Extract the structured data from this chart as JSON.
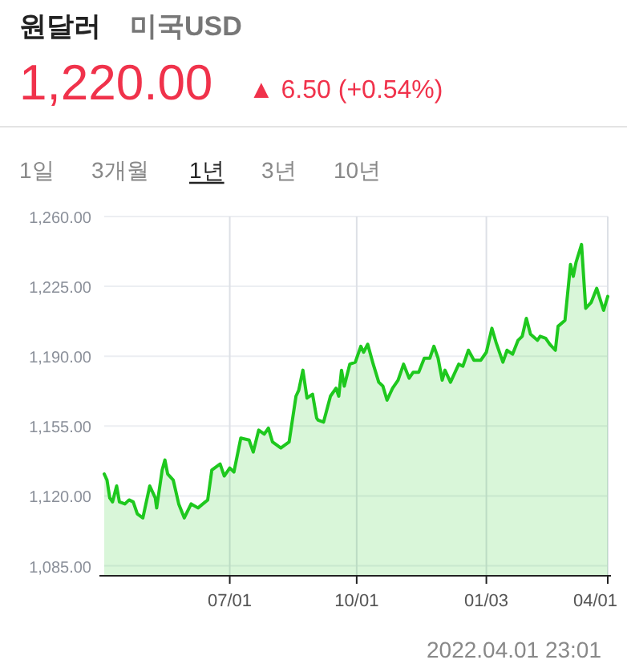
{
  "chart_data": {
    "type": "area",
    "title": "원달러",
    "subtitle": "미국USD",
    "annotations": [
      "1,220.00",
      "▲ 6.50 (+0.54%)",
      "1일",
      "3개월",
      "1년",
      "3년",
      "10년",
      "2022.04.01 23:01"
    ],
    "x": [
      "2021-04-01",
      "2021-04-03",
      "2021-04-05",
      "2021-04-07",
      "2021-04-10",
      "2021-04-12",
      "2021-04-16",
      "2021-04-19",
      "2021-04-22",
      "2021-04-25",
      "2021-04-29",
      "2021-05-04",
      "2021-05-08",
      "2021-05-09",
      "2021-05-13",
      "2021-05-15",
      "2021-05-17",
      "2021-05-21",
      "2021-05-25",
      "2021-05-29",
      "2021-06-03",
      "2021-06-08",
      "2021-06-15",
      "2021-06-18",
      "2021-06-24",
      "2021-06-27",
      "2021-07-01",
      "2021-07-04",
      "2021-07-09",
      "2021-07-15",
      "2021-07-18",
      "2021-07-22",
      "2021-07-26",
      "2021-07-29",
      "2021-08-01",
      "2021-08-07",
      "2021-08-13",
      "2021-08-18",
      "2021-08-20",
      "2021-08-23",
      "2021-08-26",
      "2021-08-30",
      "2021-09-02",
      "2021-09-03",
      "2021-09-07",
      "2021-09-12",
      "2021-09-16",
      "2021-09-18",
      "2021-09-20",
      "2021-09-22",
      "2021-09-26",
      "2021-09-30",
      "2021-10-04",
      "2021-10-06",
      "2021-10-09",
      "2021-10-13",
      "2021-10-17",
      "2021-10-20",
      "2021-10-23",
      "2021-10-27",
      "2021-10-31",
      "2021-11-04",
      "2021-11-08",
      "2021-11-11",
      "2021-11-15",
      "2021-11-19",
      "2021-11-23",
      "2021-11-26",
      "2021-11-29",
      "2021-12-02",
      "2021-12-04",
      "2021-12-08",
      "2021-12-14",
      "2021-12-17",
      "2021-12-21",
      "2021-12-25",
      "2021-12-30",
      "2022-01-03",
      "2022-01-07",
      "2022-01-10",
      "2022-01-15",
      "2022-01-18",
      "2022-01-22",
      "2022-01-26",
      "2022-01-29",
      "2022-02-01",
      "2022-02-04",
      "2022-02-09",
      "2022-02-11",
      "2022-02-15",
      "2022-02-18",
      "2022-02-22",
      "2022-02-24",
      "2022-03-01",
      "2022-03-05",
      "2022-03-07",
      "2022-03-09",
      "2022-03-13",
      "2022-03-16",
      "2022-03-20",
      "2022-03-24",
      "2022-03-29",
      "2022-04-01"
    ],
    "values": [
      1131,
      1128,
      1119,
      1117,
      1125,
      1117,
      1116,
      1118,
      1117,
      1111,
      1109,
      1125,
      1119,
      1114,
      1133,
      1138,
      1131,
      1128,
      1116,
      1109,
      1116,
      1114,
      1118,
      1133,
      1136,
      1130,
      1134,
      1132,
      1149,
      1148,
      1142,
      1153,
      1151,
      1154,
      1147,
      1144,
      1147,
      1170,
      1173,
      1183,
      1169,
      1171,
      1159,
      1158,
      1157,
      1170,
      1174,
      1170,
      1183,
      1175,
      1186,
      1187,
      1195,
      1192,
      1196,
      1186,
      1177,
      1175,
      1168,
      1174,
      1178,
      1186,
      1179,
      1182,
      1182,
      1189,
      1189,
      1195,
      1189,
      1178,
      1183,
      1177,
      1186,
      1185,
      1193,
      1188,
      1188,
      1192,
      1204,
      1197,
      1187,
      1193,
      1191,
      1198,
      1200,
      1209,
      1201,
      1198,
      1200,
      1199,
      1196,
      1193,
      1205,
      1208,
      1236,
      1230,
      1237,
      1246,
      1214,
      1217,
      1224,
      1213,
      1220
    ],
    "color": "#1ec81e",
    "xlim": [
      "2021-04-01",
      "2022-04-01"
    ],
    "xticks": [
      {
        "value": "2021-07-01",
        "label": "07/01"
      },
      {
        "value": "2021-10-01",
        "label": "10/01"
      },
      {
        "value": "2022-01-03",
        "label": "01/03"
      },
      {
        "value": "2022-04-01",
        "label": "04/01"
      }
    ],
    "ylim": [
      1080,
      1260
    ],
    "yticks": [
      {
        "value": 1085,
        "label": "1,085.00"
      },
      {
        "value": 1120,
        "label": "1,120.00"
      },
      {
        "value": 1155,
        "label": "1,155.00"
      },
      {
        "value": 1190,
        "label": "1,190.00"
      },
      {
        "value": 1225,
        "label": "1,225.00"
      },
      {
        "value": 1260,
        "label": "1,260.00"
      }
    ],
    "grid": true
  }
}
